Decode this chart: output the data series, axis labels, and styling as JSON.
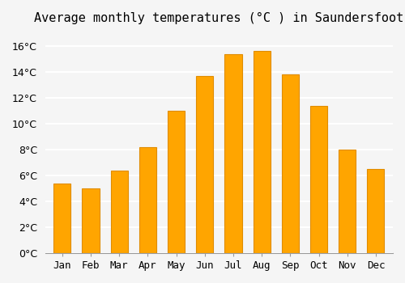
{
  "title": "Average monthly temperatures (°C ) in Saundersfoot",
  "months": [
    "Jan",
    "Feb",
    "Mar",
    "Apr",
    "May",
    "Jun",
    "Jul",
    "Aug",
    "Sep",
    "Oct",
    "Nov",
    "Dec"
  ],
  "values": [
    5.4,
    5.0,
    6.4,
    8.2,
    11.0,
    13.7,
    15.4,
    15.6,
    13.8,
    11.4,
    8.0,
    6.5
  ],
  "bar_color": "#FFA500",
  "bar_edge_color": "#E08C00",
  "ylim": [
    0,
    17
  ],
  "yticks": [
    0,
    2,
    4,
    6,
    8,
    10,
    12,
    14,
    16
  ],
  "background_color": "#f5f5f5",
  "grid_color": "#ffffff",
  "title_fontsize": 11,
  "tick_fontsize": 9
}
